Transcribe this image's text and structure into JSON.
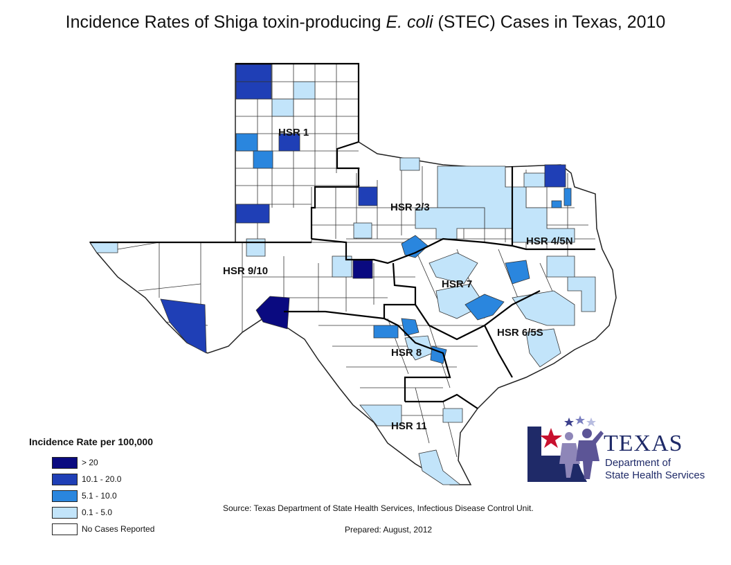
{
  "title": {
    "prefix": "Incidence Rates of Shiga toxin-producing ",
    "italic": "E. coli",
    "suffix": " (STEC) Cases in Texas, 2010"
  },
  "regions": [
    {
      "label": "HSR 1"
    },
    {
      "label": "HSR 2/3"
    },
    {
      "label": "HSR 4/5N"
    },
    {
      "label": "HSR 9/10"
    },
    {
      "label": "HSR 7"
    },
    {
      "label": "HSR 6/5S"
    },
    {
      "label": "HSR 8"
    },
    {
      "label": "HSR 11"
    }
  ],
  "legend": {
    "title": "Incidence Rate per 100,000",
    "items": [
      {
        "label": "> 20",
        "color": "#0a0a80"
      },
      {
        "label": "10.1 - 20.0",
        "color": "#1f3fb6"
      },
      {
        "label": "5.1 - 10.0",
        "color": "#2a86de"
      },
      {
        "label": "0.1 - 5.0",
        "color": "#c2e4fa"
      },
      {
        "label": "No Cases Reported",
        "color": "#ffffff"
      }
    ]
  },
  "source": "Source: Texas Department of State Health Services, Infectious Disease Control Unit.",
  "prepared": "Prepared: August, 2012",
  "logo": {
    "word": "TEXAS",
    "line1": "Department of",
    "line2": "State Health Services"
  }
}
